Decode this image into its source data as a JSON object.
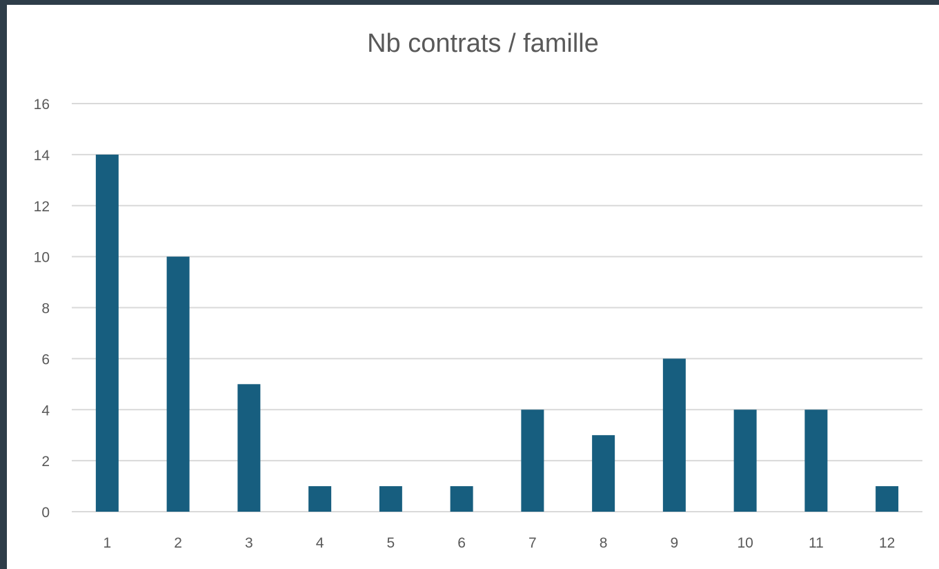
{
  "chart_data": {
    "type": "bar",
    "title": "Nb contrats / famille",
    "xlabel": "",
    "ylabel": "",
    "categories": [
      "1",
      "2",
      "3",
      "4",
      "5",
      "6",
      "7",
      "8",
      "9",
      "10",
      "11",
      "12"
    ],
    "values": [
      14,
      10,
      5,
      1,
      1,
      1,
      4,
      3,
      6,
      4,
      4,
      1
    ],
    "ylim": [
      0,
      16
    ],
    "yticks": [
      "0",
      "2",
      "4",
      "6",
      "8",
      "10",
      "12",
      "14",
      "16"
    ],
    "grid": true,
    "legend": "none",
    "colors": {
      "bar": "#175e7f",
      "grid": "#d9d9d9",
      "text": "#595959",
      "background": "#ffffff",
      "page": "#2e3d49"
    }
  }
}
